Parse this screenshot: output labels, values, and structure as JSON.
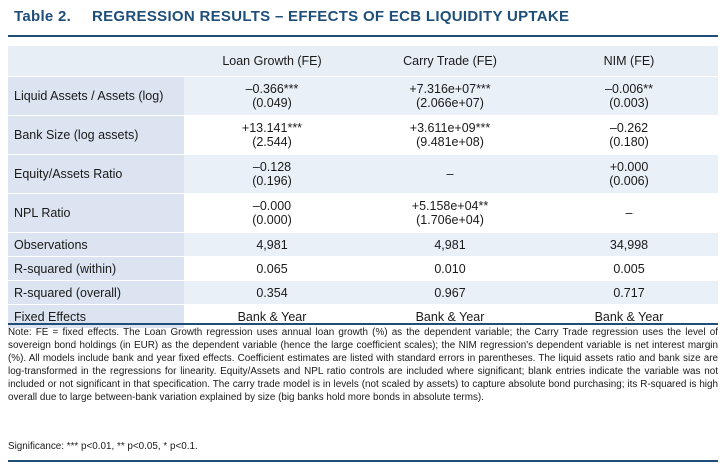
{
  "title": {
    "number": "Table 2.",
    "text": "REGRESSION RESULTS – EFFECTS OF ECB LIQUIDITY UPTAKE"
  },
  "columns": [
    "",
    "Loan Growth (FE)",
    "Carry Trade (FE)",
    "NIM (FE)"
  ],
  "coef_rows": [
    {
      "label": "Liquid Assets / Assets (log)",
      "cells": [
        {
          "c": "–0.366***",
          "se": "(0.049)"
        },
        {
          "c": "+7.316e+07***",
          "se": "(2.066e+07)"
        },
        {
          "c": "–0.006**",
          "se": "(0.003)"
        }
      ]
    },
    {
      "label": "Bank Size (log assets)",
      "cells": [
        {
          "c": "+13.141***",
          "se": "(2.544)"
        },
        {
          "c": "+3.611e+09***",
          "se": "(9.481e+08)"
        },
        {
          "c": "–0.262",
          "se": "(0.180)"
        }
      ]
    },
    {
      "label": "Equity/Assets Ratio",
      "cells": [
        {
          "c": "–0.128",
          "se": "(0.196)"
        },
        {
          "c": "–",
          "se": ""
        },
        {
          "c": "+0.000",
          "se": "(0.006)"
        }
      ]
    },
    {
      "label": "NPL Ratio",
      "cells": [
        {
          "c": "–0.000",
          "se": "(0.000)"
        },
        {
          "c": "+5.158e+04**",
          "se": "(1.706e+04)"
        },
        {
          "c": "–",
          "se": ""
        }
      ]
    }
  ],
  "stat_rows": [
    {
      "label": "Observations",
      "cells": [
        "4,981",
        "4,981",
        "34,998"
      ]
    },
    {
      "label": "R-squared (within)",
      "cells": [
        "0.065",
        "0.010",
        "0.005"
      ]
    },
    {
      "label": "R-squared (overall)",
      "cells": [
        "0.354",
        "0.967",
        "0.717"
      ]
    },
    {
      "label": "Fixed Effects",
      "cells": [
        "Bank & Year",
        "Bank & Year",
        "Bank & Year"
      ]
    }
  ],
  "note": "Note: FE = fixed effects. The Loan Growth regression uses annual loan growth (%) as the dependent variable; the Carry Trade regression uses the level of sovereign bond holdings (in EUR) as the dependent variable (hence the large coefficient scales); the NIM regression's dependent variable is net interest margin (%). All models include bank and year fixed effects. Coefficient estimates are listed with standard errors in parentheses. The liquid assets ratio and bank size are log-transformed in the regressions for linearity. Equity/Assets and NPL ratio controls are included where significant; blank entries indicate the variable was not included or not significant in that specification. The carry trade model is in levels (not scaled by assets) to capture absolute bond purchasing; its R-squared is high overall due to large between-bank variation explained by size (big banks hold more bonds in absolute terms).",
  "significance": "Significance: *** p<0.01, ** p<0.05, * p<0.1.",
  "colors": {
    "accent": "#1f4e79",
    "label_bg": "#dbe4f0",
    "shade_bg": "#eaf0f7"
  }
}
